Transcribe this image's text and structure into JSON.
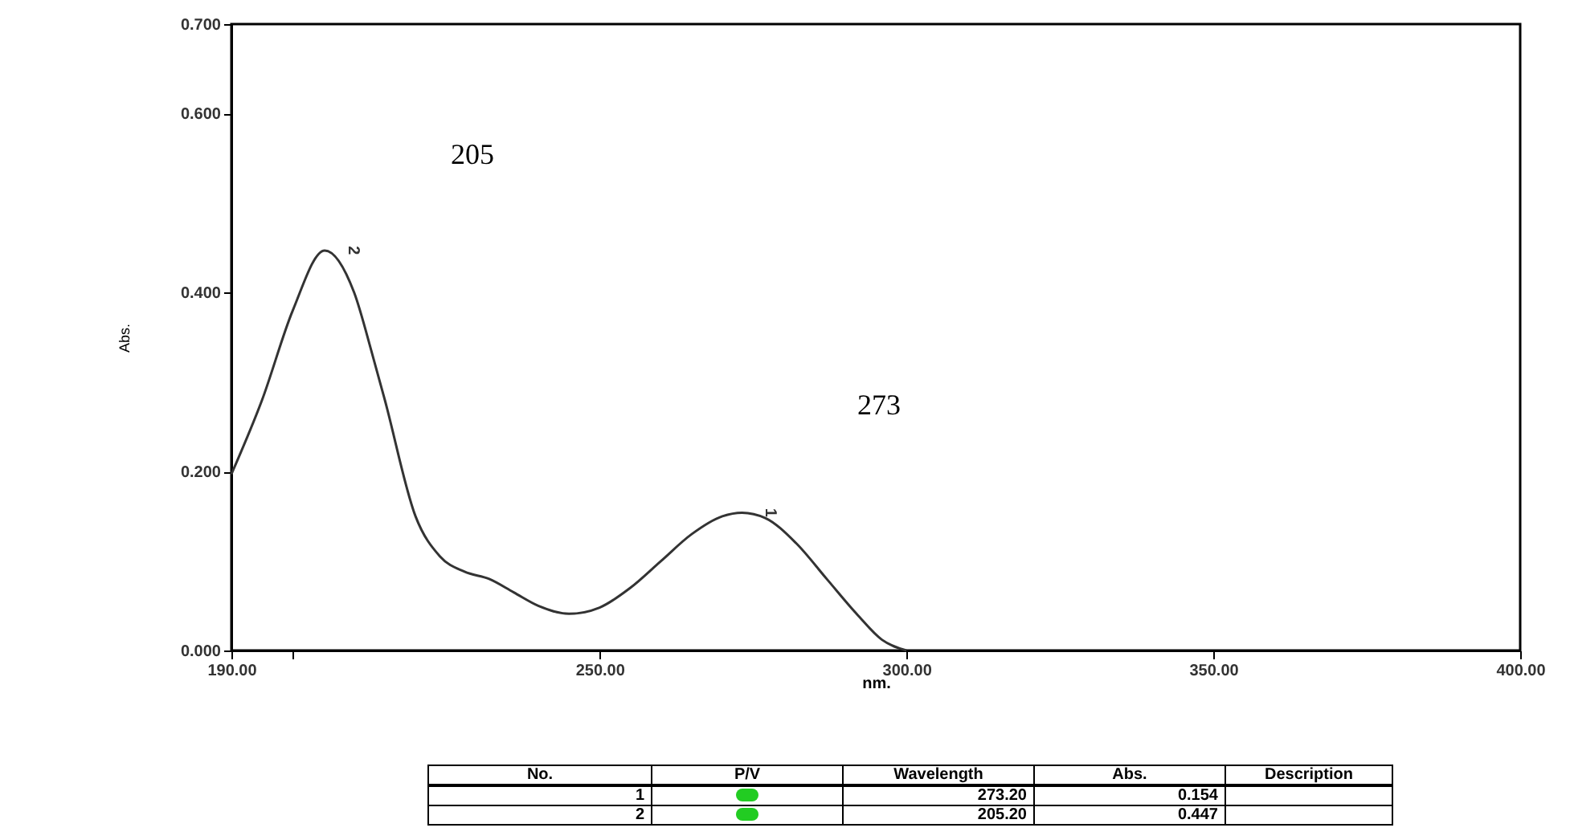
{
  "chart_data": {
    "type": "line",
    "xlabel": "nm.",
    "ylabel": "Abs.",
    "x": [
      190,
      195,
      200,
      205.2,
      210,
      213,
      215,
      220,
      224,
      228,
      232,
      236,
      240,
      245,
      250,
      255,
      260,
      265,
      270,
      273.2,
      277,
      282,
      287,
      292,
      296,
      300
    ],
    "series": [
      {
        "color": "#333333",
        "values": [
          0.197,
          0.28,
          0.38,
          0.447,
          0.4,
          0.33,
          0.28,
          0.15,
          0.105,
          0.088,
          0.08,
          0.065,
          0.05,
          0.041,
          0.048,
          0.07,
          0.1,
          0.13,
          0.15,
          0.154,
          0.148,
          0.12,
          0.08,
          0.04,
          0.012,
          0.0
        ]
      }
    ],
    "xlim": [
      190,
      400
    ],
    "xticks": [
      {
        "value": 190,
        "label": "190.00"
      },
      {
        "value": 200,
        "label": null
      },
      {
        "value": 250,
        "label": "250.00"
      },
      {
        "value": 300,
        "label": "300.00"
      },
      {
        "value": 350,
        "label": "350.00"
      },
      {
        "value": 400,
        "label": "400.00"
      }
    ],
    "ylim": [
      0,
      0.7
    ],
    "yticks": [
      {
        "value": 0,
        "label": "0.000"
      },
      {
        "value": 0.2,
        "label": "0.200"
      },
      {
        "value": 0.4,
        "label": "0.400"
      },
      {
        "value": 0.6,
        "label": "0.600"
      },
      {
        "value": 0.7,
        "label": "0.700"
      }
    ],
    "grid": false,
    "marker": "none",
    "line_style": "solid",
    "annotations": [
      "205",
      "273",
      {
        "text": "2",
        "x": 205.2,
        "y": 0.447
      },
      {
        "text": "1",
        "x": 273.2,
        "y": 0.154
      },
      "No.",
      "P/V",
      "Wavelength",
      "Abs.",
      "Description",
      "1",
      "273.20",
      "0.154",
      "2",
      "205.20",
      "0.447"
    ]
  }
}
